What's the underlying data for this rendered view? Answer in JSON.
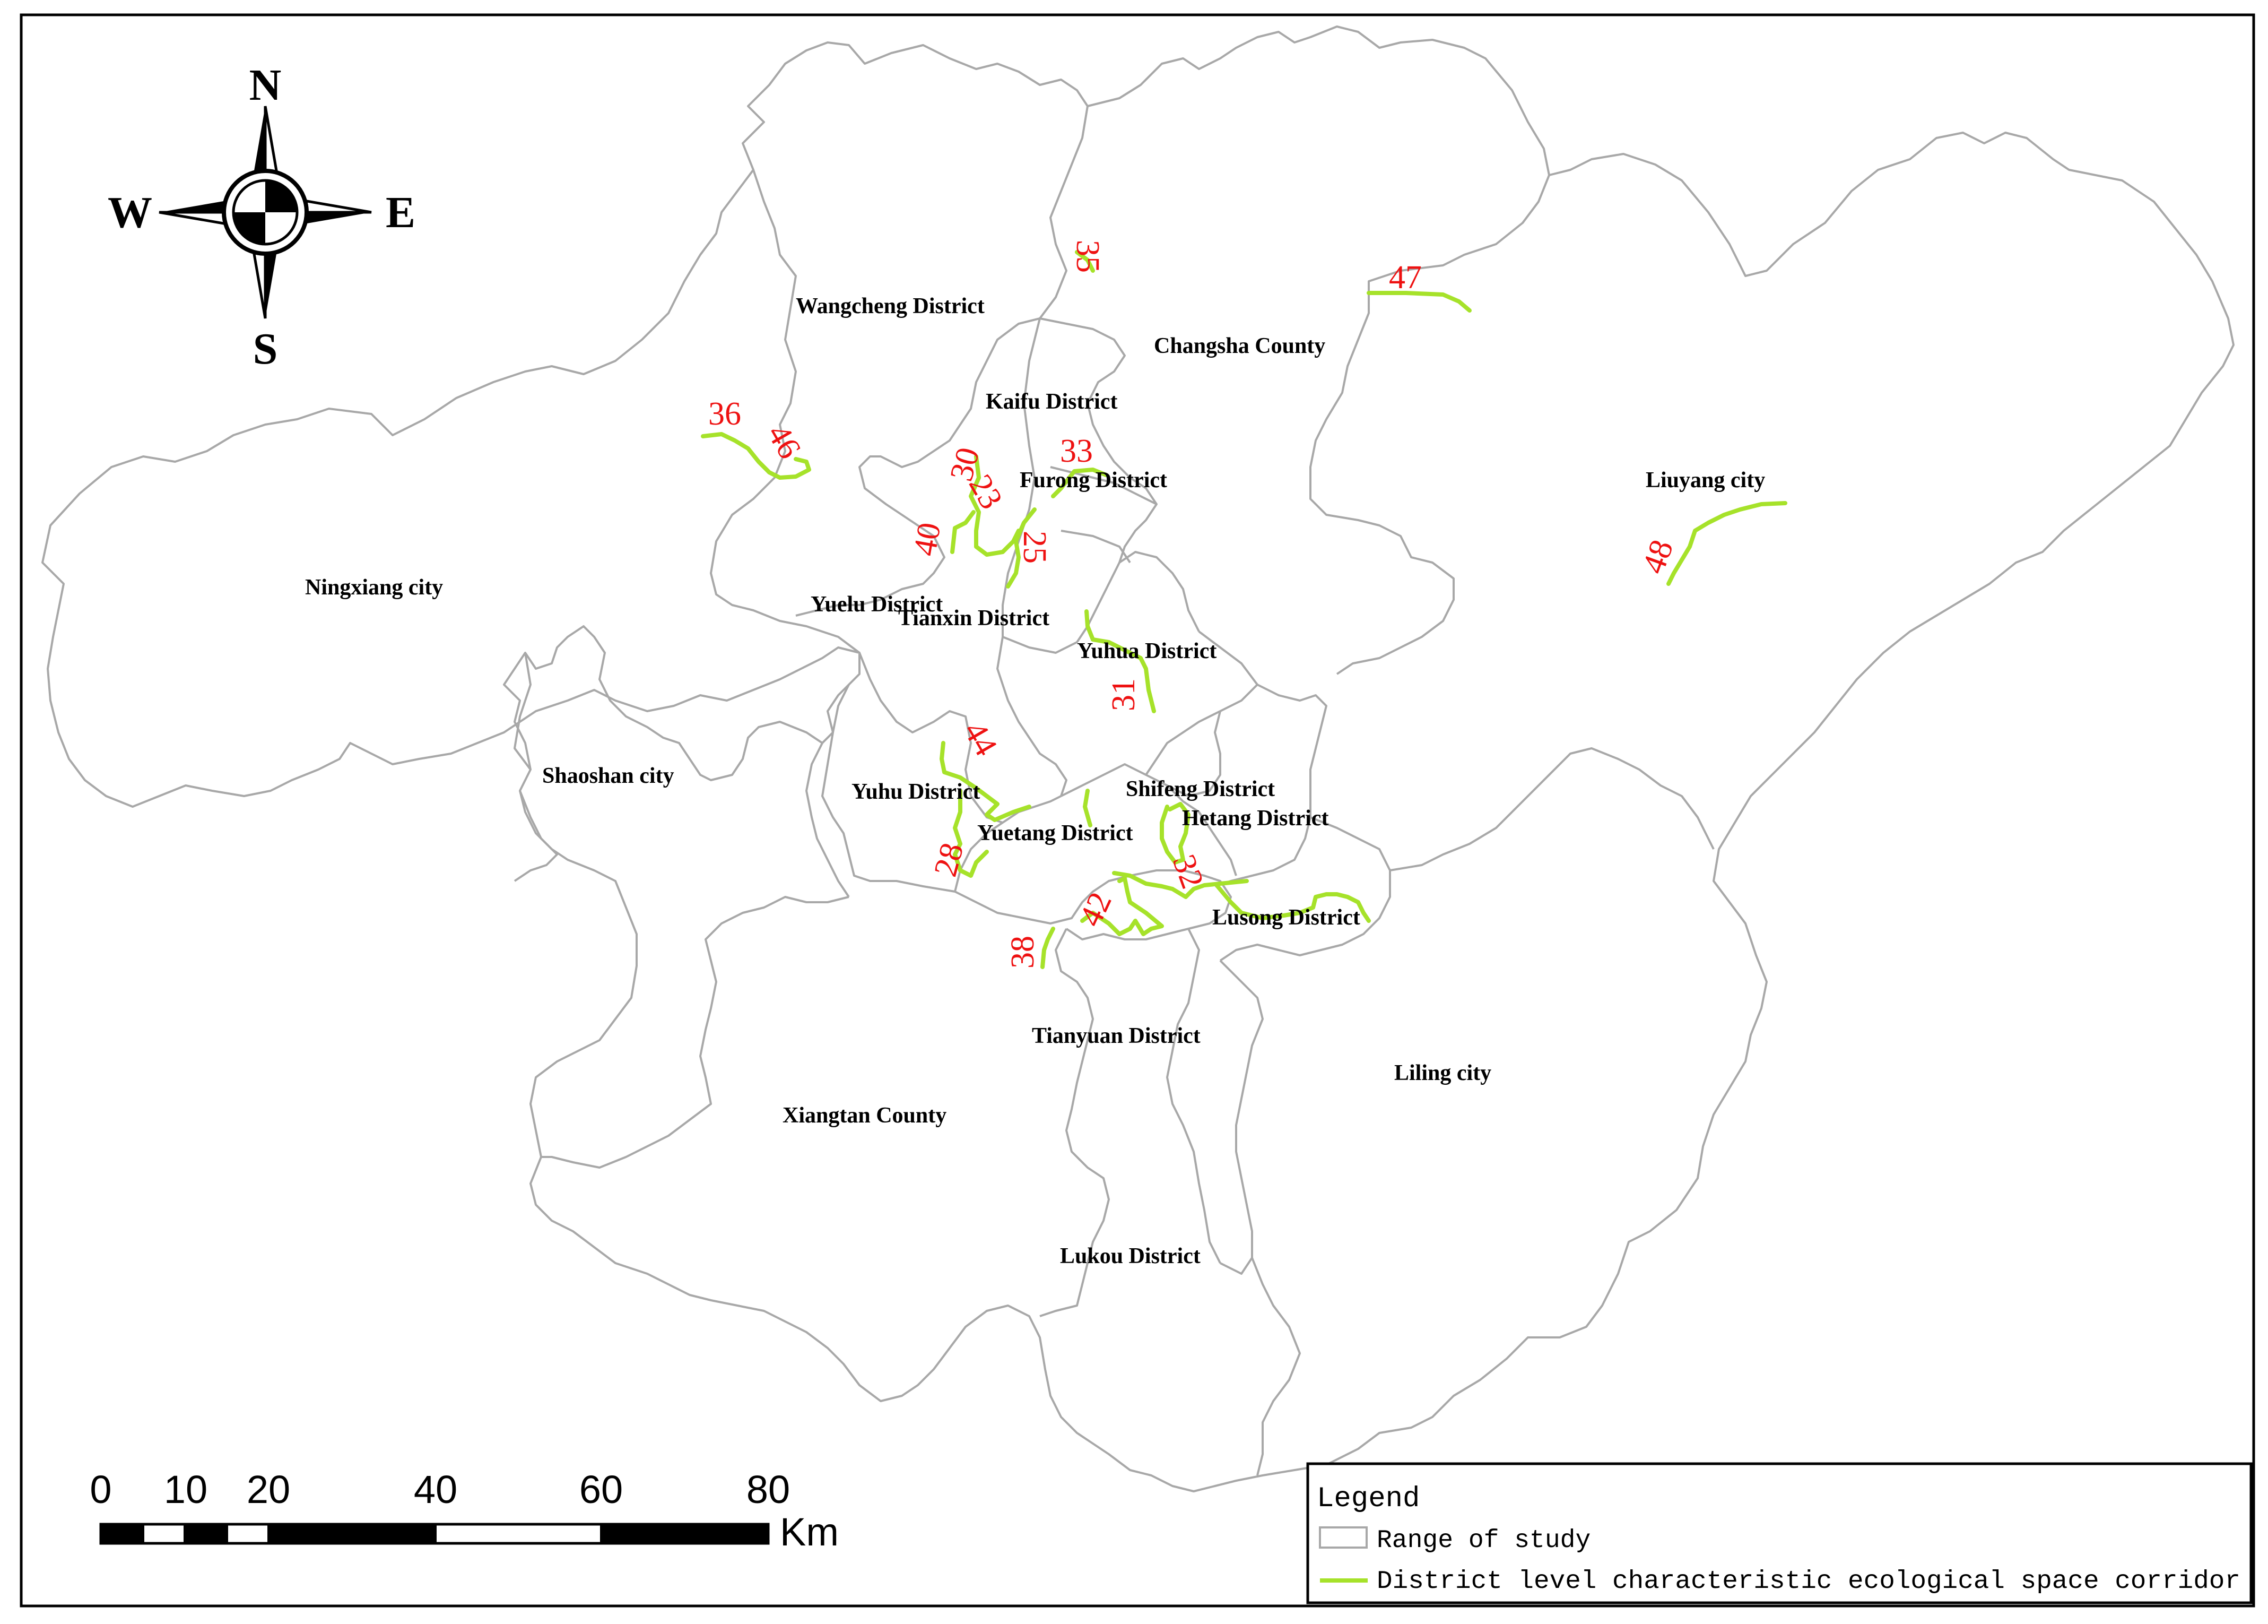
{
  "compass": {
    "north": "N",
    "south": "S",
    "east": "E",
    "west": "W"
  },
  "districts": [
    {
      "id": "wangcheng",
      "label": "Wangcheng District"
    },
    {
      "id": "changsha-county",
      "label": "Changsha County"
    },
    {
      "id": "kaifu",
      "label": "Kaifu District"
    },
    {
      "id": "furong",
      "label": "Furong District"
    },
    {
      "id": "liuyang",
      "label": "Liuyang city"
    },
    {
      "id": "ningxiang",
      "label": "Ningxiang city"
    },
    {
      "id": "yuelu",
      "label": "Yuelu District"
    },
    {
      "id": "tianxin",
      "label": "Tianxin District"
    },
    {
      "id": "yuhua",
      "label": "Yuhua District"
    },
    {
      "id": "shaoshan",
      "label": "Shaoshan city"
    },
    {
      "id": "yuhu",
      "label": "Yuhu District"
    },
    {
      "id": "shifeng",
      "label": "Shifeng District"
    },
    {
      "id": "hetang",
      "label": "Hetang District"
    },
    {
      "id": "yuetang",
      "label": "Yuetang District"
    },
    {
      "id": "lusong",
      "label": "Lusong District"
    },
    {
      "id": "tianyuan",
      "label": "Tianyuan District"
    },
    {
      "id": "liling",
      "label": "Liling city"
    },
    {
      "id": "xiangtan-county",
      "label": "Xiangtan County"
    },
    {
      "id": "lukou",
      "label": "Lukou District"
    }
  ],
  "corridor_labels": [
    "35",
    "47",
    "36",
    "46",
    "30",
    "23",
    "33",
    "40",
    "25",
    "48",
    "31",
    "44",
    "28",
    "32",
    "42",
    "38"
  ],
  "scale_bar": {
    "ticks": [
      "0",
      "10",
      "20",
      "40",
      "60",
      "80"
    ],
    "unit": "Km"
  },
  "legend": {
    "title": "Legend",
    "items": [
      {
        "label": "Range of study",
        "symbol": "polygon",
        "color": "#a8a8a8"
      },
      {
        "label": "District level characteristic ecological space corridor",
        "symbol": "line",
        "color": "#a6e22a"
      }
    ]
  }
}
